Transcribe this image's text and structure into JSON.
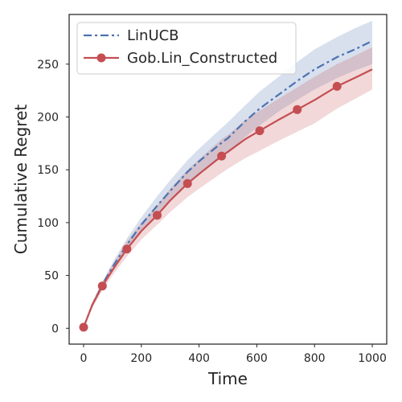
{
  "chart_data": {
    "type": "line",
    "title": "",
    "xlabel": "Time",
    "ylabel": "Cumulative Regret",
    "xlim": [
      -50,
      1050
    ],
    "ylim": [
      -15,
      297
    ],
    "xticks": [
      0,
      200,
      400,
      600,
      800,
      1000
    ],
    "yticks": [
      0,
      50,
      100,
      150,
      200,
      250
    ],
    "grid": false,
    "legend_position": "top-left",
    "series": [
      {
        "name": "LinUCB",
        "color": "#4c72b0",
        "linestyle": "dashdot",
        "marker": "none",
        "x": [
          0,
          30,
          65,
          100,
          150,
          200,
          255,
          300,
          360,
          400,
          480,
          500,
          560,
          610,
          680,
          745,
          800,
          880,
          940,
          1000
        ],
        "y": [
          1,
          22,
          41,
          58,
          79,
          98,
          116,
          130,
          148,
          158,
          176,
          180,
          196,
          208,
          222,
          235,
          245,
          257,
          264,
          272
        ],
        "lower": [
          1,
          20,
          38,
          54,
          73,
          91,
          107,
          121,
          137,
          146,
          162,
          166,
          181,
          192,
          206,
          217,
          226,
          237,
          244,
          250
        ],
        "upper": [
          1,
          24,
          44,
          62,
          85,
          105,
          125,
          140,
          159,
          170,
          190,
          195,
          211,
          224,
          239,
          253,
          264,
          276,
          284,
          291
        ]
      },
      {
        "name": "Gob.Lin_Constructed",
        "color": "#c44e52",
        "linestyle": "solid",
        "marker": "circle",
        "x": [
          0,
          30,
          65,
          100,
          150,
          200,
          255,
          300,
          360,
          400,
          478,
          500,
          560,
          610,
          680,
          740,
          800,
          878,
          940,
          1000
        ],
        "y": [
          1,
          22,
          40,
          55,
          75,
          92,
          107,
          121,
          137,
          146,
          163,
          167,
          179,
          187,
          198,
          207,
          216,
          229,
          237,
          245
        ],
        "lower": [
          1,
          19,
          36,
          50,
          68,
          84,
          98,
          110,
          124,
          132,
          147,
          151,
          161,
          168,
          178,
          186,
          194,
          208,
          217,
          226
        ],
        "upper": [
          1,
          25,
          44,
          60,
          82,
          100,
          116,
          132,
          150,
          160,
          179,
          183,
          197,
          206,
          218,
          228,
          238,
          250,
          258,
          266
        ],
        "marker_x": [
          0,
          65,
          150,
          255,
          360,
          478,
          610,
          740,
          878
        ],
        "marker_y": [
          1,
          40,
          75,
          107,
          137,
          163,
          187,
          207,
          229
        ]
      }
    ]
  }
}
